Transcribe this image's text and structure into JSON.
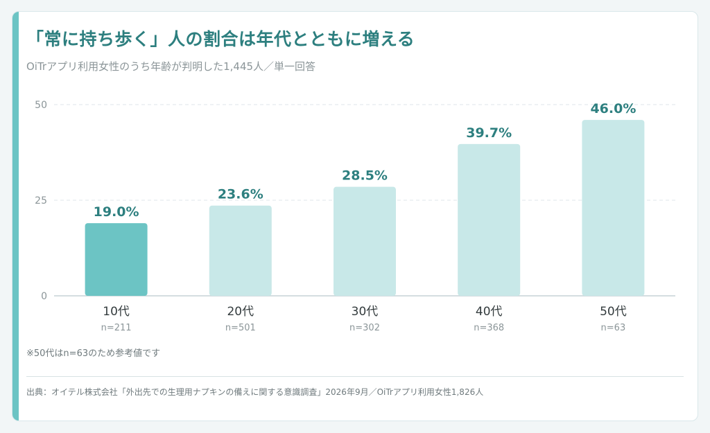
{
  "title": "「常に持ち歩く」人の割合は年代とともに増える",
  "subtitle": "OiTrアプリ利用女性のうち年齢が判明した1,445人／単一回答",
  "footnote": "※50代はn=63のため参考値です",
  "source": "出典：オイテル株式会社「外出先での生理用ナプキンの備えに関する意識調査」2026年9月／OiTrアプリ利用女性1,826人",
  "colors": {
    "accent": "#6cc4c4",
    "bar_highlight": "#6cc4c4",
    "bar_default": "#c8e8e8",
    "value_label": "#2d7f7f",
    "title": "#2d7f7f"
  },
  "chart_data": {
    "type": "bar",
    "categories": [
      "10代",
      "20代",
      "30代",
      "40代",
      "50代"
    ],
    "sample_sizes": [
      "n=211",
      "n=501",
      "n=302",
      "n=368",
      "n=63"
    ],
    "values": [
      19.0,
      23.6,
      28.5,
      39.7,
      46.0
    ],
    "value_labels": [
      "19.0%",
      "23.6%",
      "28.5%",
      "39.7%",
      "46.0%"
    ],
    "highlighted_index": 0,
    "ylim": [
      0,
      50
    ],
    "yticks": [
      0,
      25,
      50
    ],
    "grid": true
  }
}
